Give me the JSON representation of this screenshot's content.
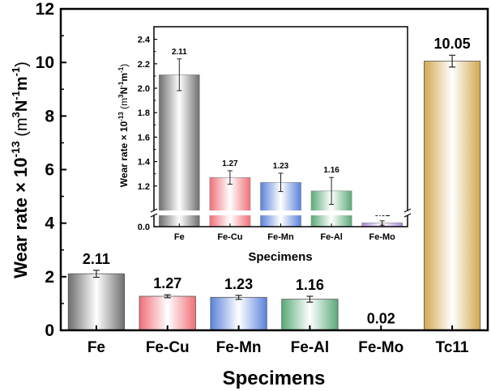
{
  "chart_data": [
    {
      "id": "main",
      "type": "bar",
      "title": "",
      "xlabel": "Specimens",
      "ylabel": {
        "main": "Wear rate × 10",
        "exp": "-13",
        "unit_open": " (m",
        "unit_sup1": "3",
        "unit_mid1": "N",
        "unit_sup2": "-1",
        "unit_mid2": "m",
        "unit_sup3": "-1",
        "unit_close": ")"
      },
      "categories": [
        "Fe",
        "Fe-Cu",
        "Fe-Mn",
        "Fe-Al",
        "Fe-Mo",
        "Tc11"
      ],
      "values": [
        2.11,
        1.27,
        1.23,
        1.16,
        0.02,
        10.05
      ],
      "errors": [
        0.13,
        0.055,
        0.075,
        0.11,
        0.01,
        0.22
      ],
      "data_labels": [
        "2.11",
        "1.27",
        "1.23",
        "1.16",
        "0.02",
        "10.05"
      ],
      "colors": [
        "#6e6e6e",
        "#f07078",
        "#5a82dc",
        "#5aaa78",
        "#a98ad8",
        "#d2a850"
      ],
      "ylim": [
        0,
        12
      ],
      "yticks": [
        0,
        2,
        4,
        6,
        8,
        10,
        12
      ],
      "ytick_labels": [
        "0",
        "2",
        "4",
        "6",
        "8",
        "10",
        "12"
      ],
      "grid": false,
      "legend": "none"
    },
    {
      "id": "inset",
      "type": "bar",
      "title": "",
      "xlabel": "Specimens",
      "ylabel": {
        "main": "Wear rate × 10",
        "exp": "-13",
        "unit_open": " (m",
        "unit_sup1": "3",
        "unit_mid1": "N",
        "unit_sup2": "-1",
        "unit_mid2": "m",
        "unit_sup3": "-1",
        "unit_close": ")"
      },
      "categories": [
        "Fe",
        "Fe-Cu",
        "Fe-Mn",
        "Fe-Al",
        "Fe-Mo"
      ],
      "values": [
        2.11,
        1.27,
        1.23,
        1.16,
        0.02
      ],
      "errors": [
        0.13,
        0.055,
        0.075,
        0.11,
        0.01
      ],
      "data_labels": [
        "2.11",
        "1.27",
        "1.23",
        "1.16",
        "0.02"
      ],
      "colors": [
        "#6e6e6e",
        "#f07078",
        "#5a82dc",
        "#5aaa78",
        "#a98ad8"
      ],
      "axis_break": [
        0.05,
        1.0
      ],
      "ylim": [
        0,
        2.5
      ],
      "yticks": [
        0.0,
        1.2,
        1.4,
        1.6,
        1.8,
        2.0,
        2.2,
        2.4
      ],
      "ytick_labels": [
        "0.0",
        "1.2",
        "1.4",
        "1.6",
        "1.8",
        "2.0",
        "2.2",
        "2.4"
      ],
      "grid": false,
      "legend": "none"
    }
  ]
}
